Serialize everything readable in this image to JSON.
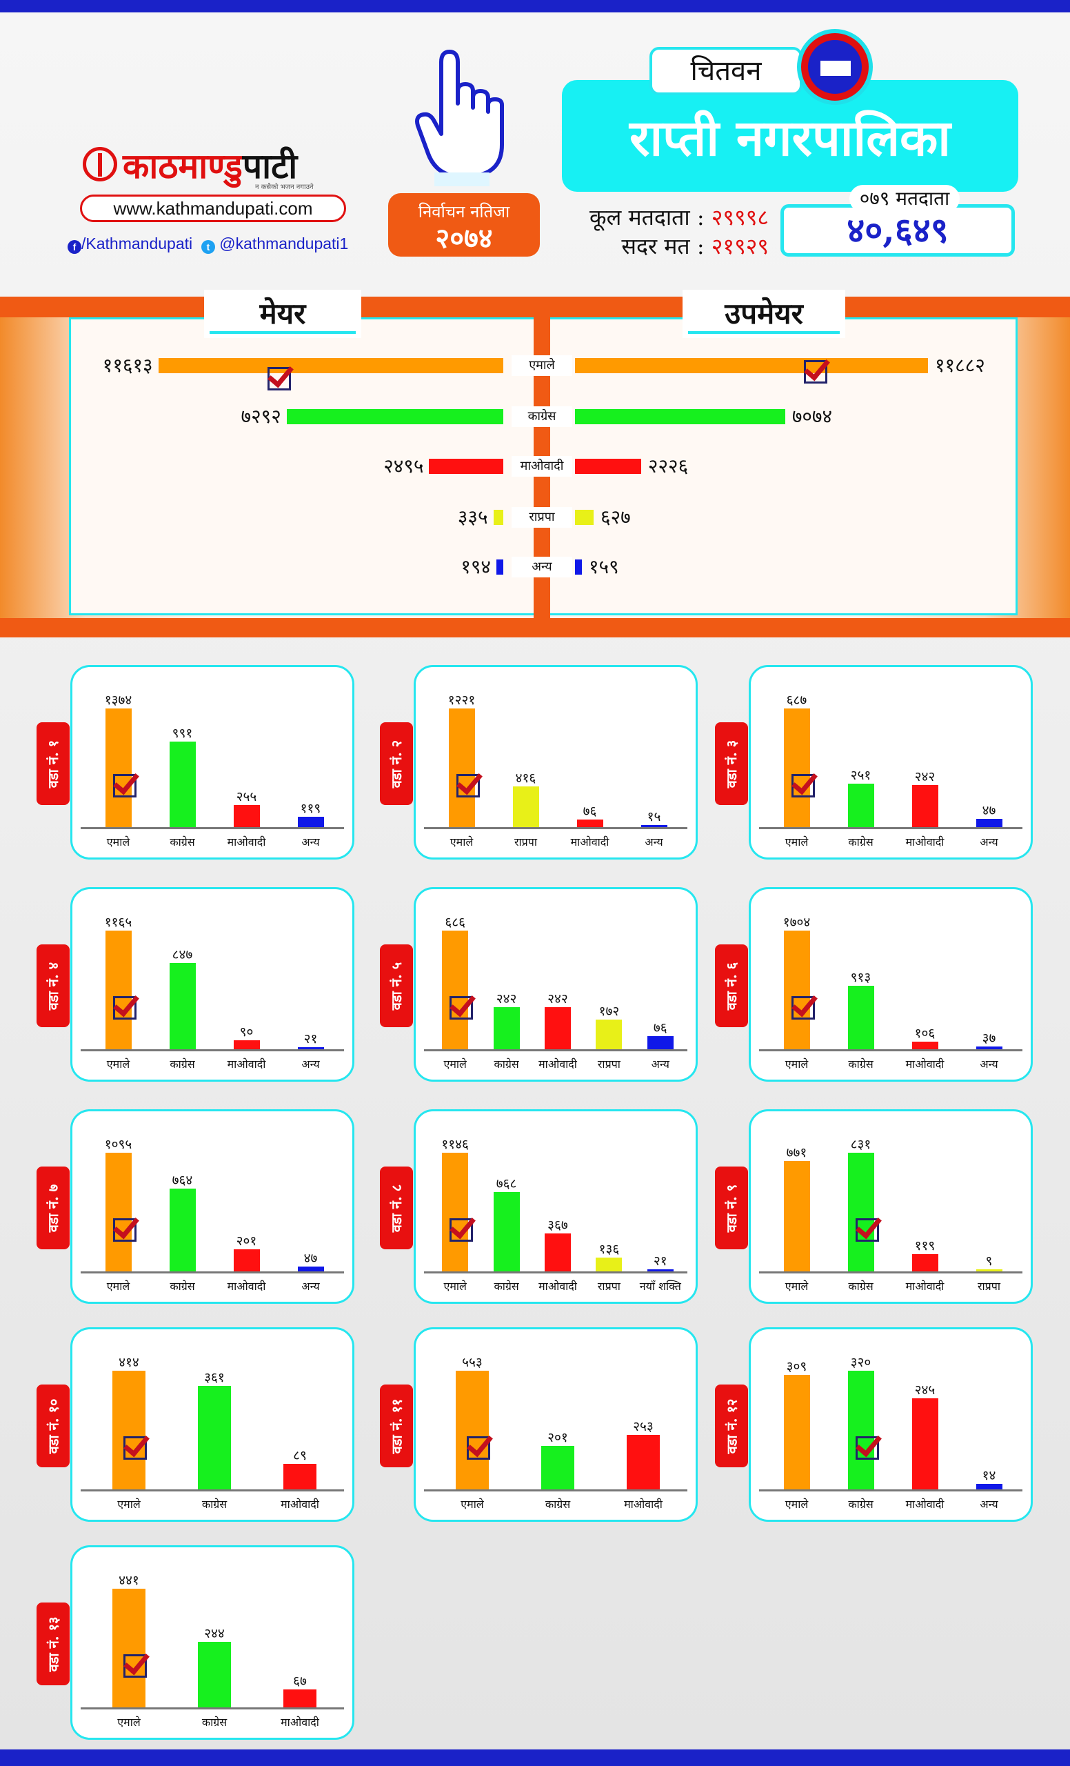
{
  "header": {
    "brand_red": "काठमाण्डु",
    "brand_black": "पाटी",
    "brand_tagline": "न कसैको भजन नगाउने",
    "website": "www.kathmandupati.com",
    "facebook": "/Kathmandupati",
    "twitter": "@kathmandupati1",
    "election_label_line1": "निर्वाचन नतिजा",
    "election_label_line2": "२०७४",
    "district": "चितवन",
    "municipality": "राप्ती नगरपालिका",
    "total_voters_label": "कूल मतदाता :",
    "total_voters_value": "२९९९८",
    "valid_votes_label": "सदर मत :",
    "valid_votes_value": "२१९२९",
    "voters_079_label": "०७९ मतदाता",
    "voters_079_value": "४०,६४९"
  },
  "colors": {
    "एमाले": "#ff9a00",
    "काग्रेस": "#16f01e",
    "माओवादी": "#ff1010",
    "राप्रपा": "#e8f018",
    "अन्य": "#1018e8",
    "नयाँ शक्ति": "#1018e8",
    "accent_cyan": "#25e6ef",
    "accent_orange": "#f05a14",
    "brand_blue": "#1a22c8"
  },
  "chart_data": [
    {
      "type": "bar",
      "id": "mayor-deputy",
      "orientation": "horizontal-butterfly",
      "categories": [
        "एमाले",
        "काग्रेस",
        "माओवादी",
        "राप्रपा",
        "अन्य"
      ],
      "series": [
        {
          "name": "मेयर",
          "values": [
            11613,
            7292,
            2495,
            335,
            194
          ],
          "labels": [
            "११६१३",
            "७२९२",
            "२४९५",
            "३३५",
            "१९४"
          ],
          "winner": 0
        },
        {
          "name": "उपमेयर",
          "values": [
            11882,
            7074,
            2226,
            627,
            159
          ],
          "labels": [
            "११८८२",
            "७०७४",
            "२२२६",
            "६२७",
            "१५९"
          ],
          "winner": 0
        }
      ]
    },
    {
      "type": "bar",
      "id": "ward-1",
      "title": "वडा नं. १",
      "categories": [
        "एमाले",
        "काग्रेस",
        "माओवादी",
        "अन्य"
      ],
      "values": [
        1374,
        991,
        255,
        119
      ],
      "labels": [
        "१३७४",
        "९९१",
        "२५५",
        "११९"
      ],
      "winner": 0
    },
    {
      "type": "bar",
      "id": "ward-2",
      "title": "वडा नं. २",
      "categories": [
        "एमाले",
        "राप्रपा",
        "माओवादी",
        "अन्य"
      ],
      "values": [
        1221,
        416,
        76,
        15
      ],
      "labels": [
        "१२२१",
        "४१६",
        "७६",
        "१५"
      ],
      "winner": 0
    },
    {
      "type": "bar",
      "id": "ward-3",
      "title": "वडा नं. ३",
      "categories": [
        "एमाले",
        "काग्रेस",
        "माओवादी",
        "अन्य"
      ],
      "values": [
        687,
        251,
        242,
        47
      ],
      "labels": [
        "६८७",
        "२५१",
        "२४२",
        "४७"
      ],
      "winner": 0
    },
    {
      "type": "bar",
      "id": "ward-4",
      "title": "वडा नं. ४",
      "categories": [
        "एमाले",
        "काग्रेस",
        "माओवादी",
        "अन्य"
      ],
      "values": [
        1165,
        847,
        90,
        21
      ],
      "labels": [
        "११६५",
        "८४७",
        "९०",
        "२१"
      ],
      "winner": 0
    },
    {
      "type": "bar",
      "id": "ward-5",
      "title": "वडा नं. ५",
      "categories": [
        "एमाले",
        "काग्रेस",
        "माओवादी",
        "राप्रपा",
        "अन्य"
      ],
      "values": [
        686,
        242,
        242,
        172,
        76
      ],
      "labels": [
        "६८६",
        "२४२",
        "२४२",
        "१७२",
        "७६"
      ],
      "winner": 0
    },
    {
      "type": "bar",
      "id": "ward-6",
      "title": "वडा नं. ६",
      "categories": [
        "एमाले",
        "काग्रेस",
        "माओवादी",
        "अन्य"
      ],
      "values": [
        1704,
        913,
        106,
        37
      ],
      "labels": [
        "१७०४",
        "९१३",
        "१०६",
        "३७"
      ],
      "winner": 0
    },
    {
      "type": "bar",
      "id": "ward-7",
      "title": "वडा नं. ७",
      "categories": [
        "एमाले",
        "काग्रेस",
        "माओवादी",
        "अन्य"
      ],
      "values": [
        1095,
        764,
        201,
        47
      ],
      "labels": [
        "१०९५",
        "७६४",
        "२०१",
        "४७"
      ],
      "winner": 0
    },
    {
      "type": "bar",
      "id": "ward-8",
      "title": "वडा नं. ८",
      "categories": [
        "एमाले",
        "काग्रेस",
        "माओवादी",
        "राप्रपा",
        "नयाँ शक्ति"
      ],
      "values": [
        1146,
        768,
        367,
        136,
        21
      ],
      "labels": [
        "११४६",
        "७६८",
        "३६७",
        "१३६",
        "२१"
      ],
      "winner": 0
    },
    {
      "type": "bar",
      "id": "ward-9",
      "title": "वडा नं. ९",
      "categories": [
        "एमाले",
        "काग्रेस",
        "माओवादी",
        "राप्रपा"
      ],
      "values": [
        771,
        831,
        119,
        9
      ],
      "labels": [
        "७७१",
        "८३१",
        "११९",
        "९"
      ],
      "winner": 1
    },
    {
      "type": "bar",
      "id": "ward-10",
      "title": "वडा नं. १०",
      "categories": [
        "एमाले",
        "काग्रेस",
        "माओवादी"
      ],
      "values": [
        414,
        361,
        89
      ],
      "labels": [
        "४१४",
        "३६१",
        "८९"
      ],
      "winner": 0
    },
    {
      "type": "bar",
      "id": "ward-11",
      "title": "वडा नं. ११",
      "categories": [
        "एमाले",
        "काग्रेस",
        "माओवादी"
      ],
      "values": [
        553,
        201,
        253
      ],
      "labels": [
        "५५३",
        "२०१",
        "२५३"
      ],
      "winner": 0
    },
    {
      "type": "bar",
      "id": "ward-12",
      "title": "वडा नं. १२",
      "categories": [
        "एमाले",
        "काग्रेस",
        "माओवादी",
        "अन्य"
      ],
      "values": [
        309,
        320,
        245,
        14
      ],
      "labels": [
        "३०९",
        "३२०",
        "२४५",
        "१४"
      ],
      "winner": 1
    },
    {
      "type": "bar",
      "id": "ward-13",
      "title": "वडा नं. १३",
      "categories": [
        "एमाले",
        "काग्रेस",
        "माओवादी"
      ],
      "values": [
        441,
        244,
        67
      ],
      "labels": [
        "४४१",
        "२४४",
        "६७"
      ],
      "winner": 0
    }
  ]
}
